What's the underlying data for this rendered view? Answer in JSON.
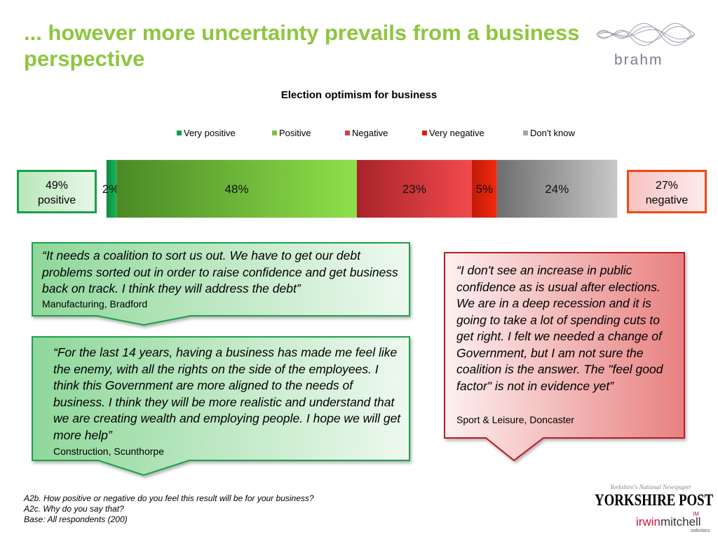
{
  "title": "... however more uncertainty prevails from a business perspective",
  "logos": {
    "brahm": "brahm",
    "yorkshire_tagline": "Yorkshire's National Newspaper",
    "yorkshire_name": "YORKSHIRE POST",
    "irwin": "irwin",
    "mitchell": "mitchell",
    "im_badge": "IM",
    "im_sub": "solicitors"
  },
  "chart_data": {
    "type": "bar",
    "orientation": "horizontal-stacked-100",
    "title": "Election optimism for business",
    "series": [
      {
        "name": "Very positive",
        "value": 2,
        "label": "2%",
        "color": "#12a04c"
      },
      {
        "name": "Positive",
        "value": 48,
        "label": "48%",
        "color": "#7cc04a"
      },
      {
        "name": "Negative",
        "value": 23,
        "label": "23%",
        "color": "#dd3b3e"
      },
      {
        "name": "Very negative",
        "value": 5,
        "label": "5%",
        "color": "#e0220c"
      },
      {
        "name": "Don't know",
        "value": 24,
        "label": "24%",
        "color": "#a6a6a6"
      }
    ],
    "legend_position": "top",
    "grid": false
  },
  "summary": {
    "positive_value": "49%",
    "positive_label": "positive",
    "negative_value": "27%",
    "negative_label": "negative"
  },
  "quotes": [
    {
      "text": "“It needs a coalition to sort us out. We have to get our debt problems sorted out in order to raise confidence and get business back on track. I think they will address the debt”",
      "source": "Manufacturing, Bradford"
    },
    {
      "text": "“For the last 14 years, having a business has made me feel like the enemy, with all the rights on the side of the employees. I think this Government are more aligned to the needs of business. I think they will be more realistic and understand that we are creating wealth and employing people. I hope we will get more help”",
      "source": "Construction, Scunthorpe"
    },
    {
      "text": "“I don't see an increase in public confidence as is usual after elections. We are in a deep recession and it is going to take a lot of spending cuts to get right. I felt we needed a change of Government, but I am not sure the coalition is the answer. The \"feel good factor\" is not in evidence yet”",
      "source": "Sport & Leisure, Doncaster"
    }
  ],
  "footnote": {
    "q1": "A2b. How positive or negative do you feel this result will be for your business?",
    "q2": "A2c. Why do you say that?",
    "base": "Base: All respondents (200)"
  }
}
